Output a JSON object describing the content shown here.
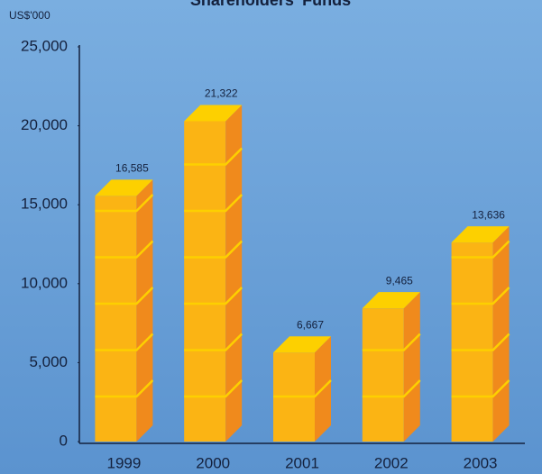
{
  "chart_data": {
    "type": "bar3d",
    "title": "Shareholders' Funds",
    "y_axis_label": "US$'000",
    "categories": [
      "1999",
      "2000",
      "2001",
      "2002",
      "2003"
    ],
    "values": [
      16585,
      21322,
      6667,
      9465,
      13636
    ],
    "value_labels": [
      "16,585",
      "21,322",
      "6,667",
      "9,465",
      "13,636"
    ],
    "colors": {
      "front": "#fbb414",
      "side": "#f08a1c",
      "top": "#fdd000"
    },
    "ylim": [
      0,
      25000
    ],
    "yticks": [
      0,
      {
        "value": 5000,
        "label": "5,000"
      },
      {
        "value": 10000,
        "label": "10,000"
      },
      {
        "value": 15000,
        "label": "15,000"
      },
      {
        "value": 20000,
        "label": "20,000"
      },
      {
        "value": 25000,
        "label": "25,000"
      }
    ]
  }
}
